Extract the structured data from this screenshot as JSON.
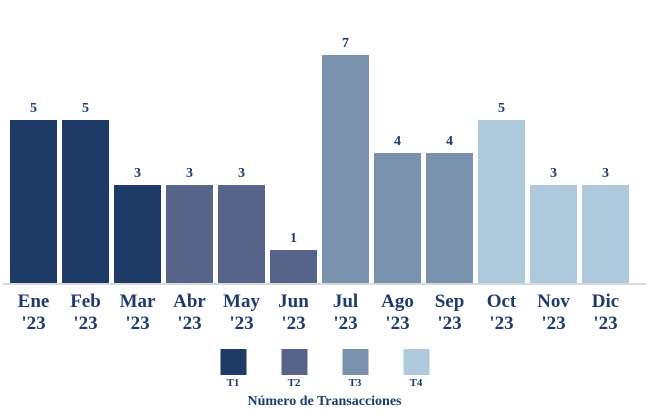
{
  "chart_data": {
    "type": "bar",
    "title": "",
    "caption": "Número de Transacciones",
    "categories": [
      "Ene '23",
      "Feb '23",
      "Mar '23",
      "Abr '23",
      "May '23",
      "Jun '23",
      "Jul '23",
      "Ago '23",
      "Sep '23",
      "Oct '23",
      "Nov '23",
      "Dic '23"
    ],
    "values": [
      5,
      5,
      3,
      3,
      3,
      1,
      7,
      4,
      4,
      5,
      3,
      3
    ],
    "bars": [
      {
        "month": "Ene",
        "year": "'23",
        "value": 5,
        "series": "T1"
      },
      {
        "month": "Feb",
        "year": "'23",
        "value": 5,
        "series": "T1"
      },
      {
        "month": "Mar",
        "year": "'23",
        "value": 3,
        "series": "T1"
      },
      {
        "month": "Abr",
        "year": "'23",
        "value": 3,
        "series": "T2"
      },
      {
        "month": "May",
        "year": "'23",
        "value": 3,
        "series": "T2"
      },
      {
        "month": "Jun",
        "year": "'23",
        "value": 1,
        "series": "T2"
      },
      {
        "month": "Jul",
        "year": "'23",
        "value": 7,
        "series": "T3"
      },
      {
        "month": "Ago",
        "year": "'23",
        "value": 4,
        "series": "T3"
      },
      {
        "month": "Sep",
        "year": "'23",
        "value": 4,
        "series": "T3"
      },
      {
        "month": "Oct",
        "year": "'23",
        "value": 5,
        "series": "T4"
      },
      {
        "month": "Nov",
        "year": "'23",
        "value": 3,
        "series": "T4"
      },
      {
        "month": "Dic",
        "year": "'23",
        "value": 3,
        "series": "T4"
      }
    ],
    "series_colors": {
      "T1": "#1e3a66",
      "T2": "#566489",
      "T3": "#7a92ad",
      "T4": "#aec9db"
    },
    "legend": [
      {
        "label": "T1",
        "color": "#1e3a66"
      },
      {
        "label": "T2",
        "color": "#566489"
      },
      {
        "label": "T3",
        "color": "#7a92ad"
      },
      {
        "label": "T4",
        "color": "#aec9db"
      }
    ],
    "legend_position": "bottom",
    "xlabel": "",
    "ylabel": "",
    "ylim": [
      0,
      7
    ],
    "grid": false,
    "colors": {
      "text": "#1f3b6d",
      "axis_line": "#d9d9d9",
      "background": "#ffffff"
    }
  }
}
